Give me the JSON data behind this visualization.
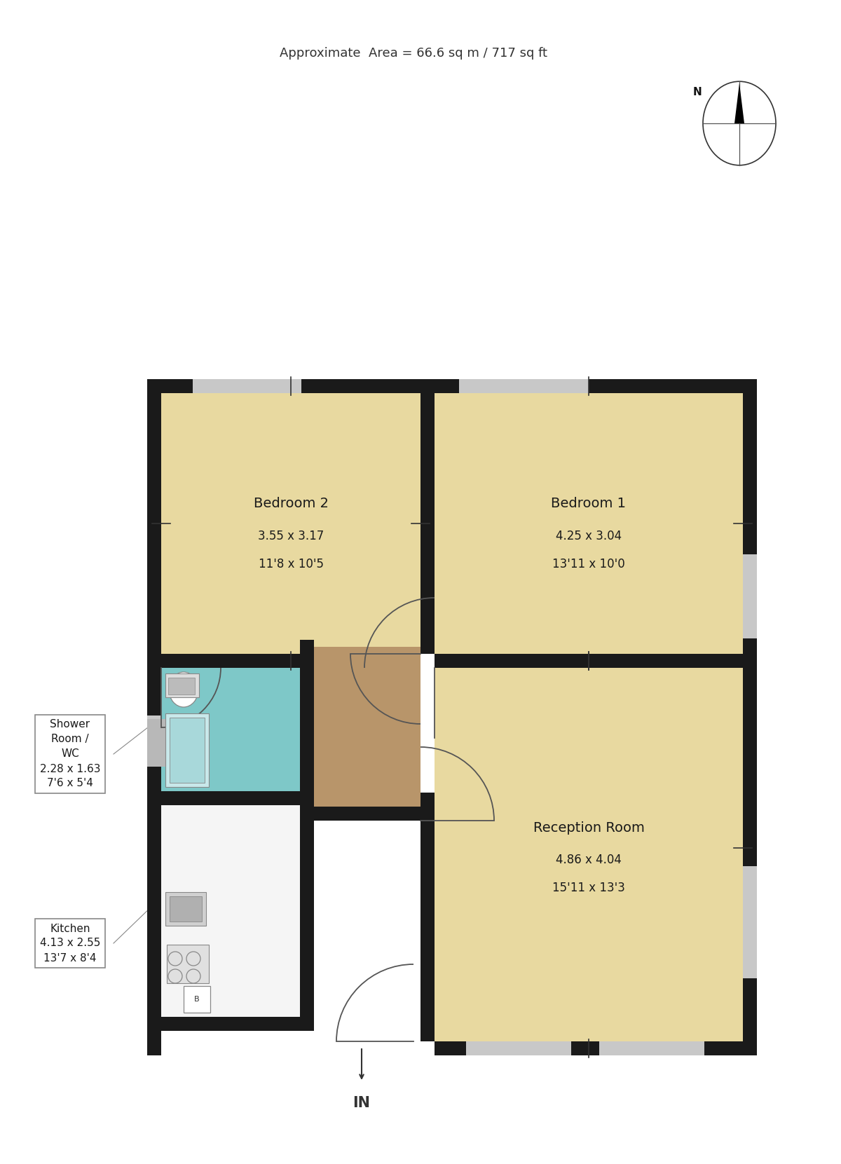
{
  "title": "Approximate  Area = 66.6 sq m / 717 sq ft",
  "bg_color": "#ffffff",
  "wall_color": "#1a1a1a",
  "room_colors": {
    "bedroom": "#e8d9a0",
    "reception": "#e8d9a0",
    "shower": "#7ec8c8",
    "hallway": "#b8956a",
    "kitchen_bg": "#f5f5f5"
  },
  "labels": {
    "bed2": [
      "Bedroom 2",
      "3.55 x 3.17",
      "11'8 x 10'5"
    ],
    "bed1": [
      "Bedroom 1",
      "4.25 x 3.04",
      "13'11 x 10'0"
    ],
    "recep": [
      "Reception Room",
      "4.86 x 4.04",
      "15'11 x 13'3"
    ],
    "shower_box": "Shower\nRoom /\nWC\n2.28 x 1.63\n7'6 x 5'4",
    "kitchen_box": "Kitchen\n4.13 x 2.55\n13'7 x 8'4",
    "entrance": "IN"
  },
  "colors": {
    "tick": "#333333",
    "door": "#555555",
    "wall": "#1a1a1a",
    "window": "#c8c8c8",
    "label_text": "#1a1a1a",
    "compass_fill": "#000000"
  }
}
